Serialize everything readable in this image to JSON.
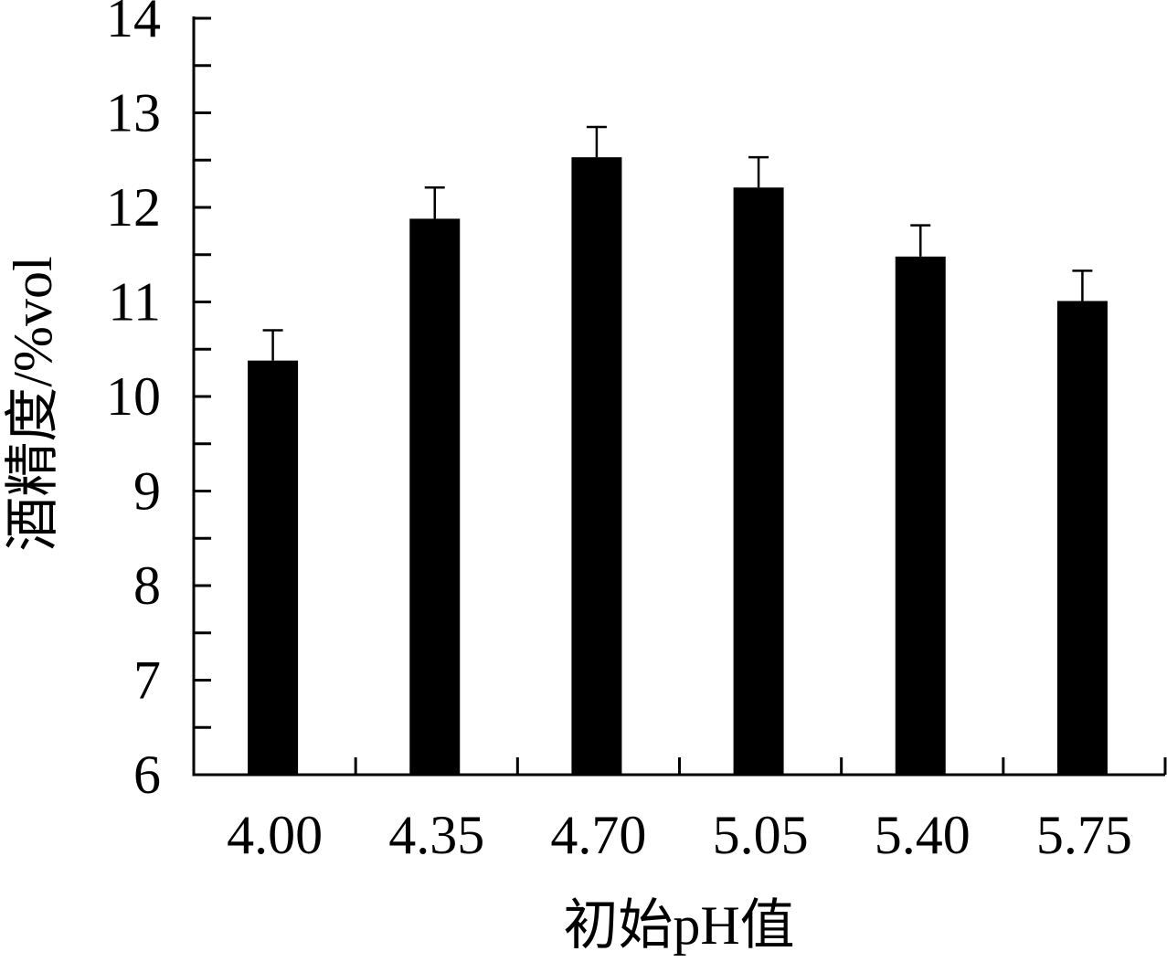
{
  "chart_data": {
    "type": "bar",
    "categories": [
      "4.00",
      "4.35",
      "4.70",
      "5.05",
      "5.40",
      "5.75"
    ],
    "values": [
      10.38,
      11.88,
      12.53,
      12.21,
      11.48,
      11.01
    ],
    "errors": [
      0.32,
      0.33,
      0.32,
      0.32,
      0.33,
      0.32
    ],
    "xlabel": "初始pH值",
    "ylabel": "酒精度/%vol",
    "ylim": [
      6,
      14
    ],
    "yticks": [
      6,
      7,
      8,
      9,
      10,
      11,
      12,
      13,
      14
    ],
    "ytick_minor_step": 0.5,
    "grid": false,
    "colors": {
      "bar": "#000000",
      "axis": "#000000",
      "background": "#ffffff"
    }
  }
}
